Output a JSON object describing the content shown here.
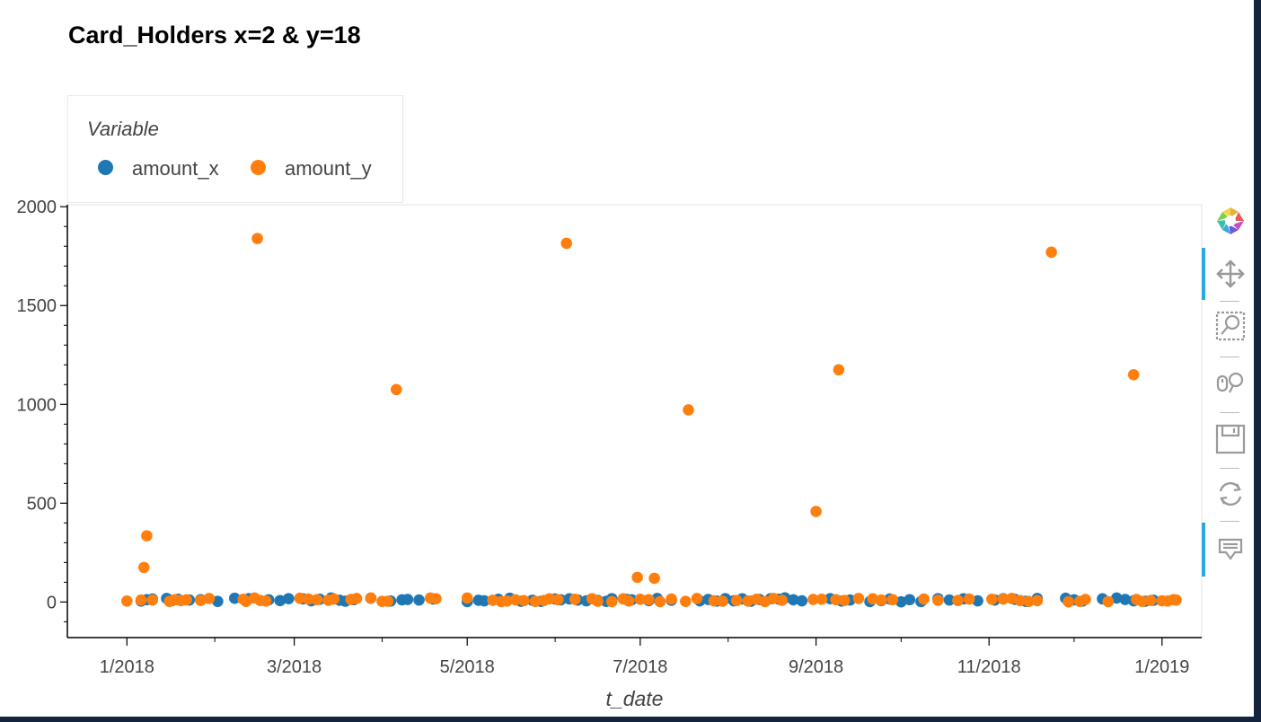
{
  "chart_data": {
    "type": "scatter",
    "title": "Card_Holders x=2 & y=18",
    "xlabel": "t_date",
    "ylabel": "",
    "legend": {
      "title": "Variable",
      "placement": "top-left, above plot"
    },
    "xlim": [
      "2017-12-11",
      "2019-01-15"
    ],
    "ylim": [
      -180,
      2010
    ],
    "yticks": [
      0,
      500,
      1000,
      1500,
      2000
    ],
    "xticks": [
      {
        "date": "2018-01-01",
        "label": "1/2018"
      },
      {
        "date": "2018-03-01",
        "label": "3/2018"
      },
      {
        "date": "2018-05-01",
        "label": "5/2018"
      },
      {
        "date": "2018-07-01",
        "label": "7/2018"
      },
      {
        "date": "2018-09-01",
        "label": "9/2018"
      },
      {
        "date": "2018-11-01",
        "label": "11/2018"
      },
      {
        "date": "2019-01-01",
        "label": "1/2019"
      }
    ],
    "grid": false,
    "series": [
      {
        "name": "amount_x",
        "color": "#1f77b4",
        "points": [
          {
            "x": "2018-01-06",
            "y": 5
          },
          {
            "x": "2018-01-08",
            "y": 12
          },
          {
            "x": "2018-01-10",
            "y": 15
          },
          {
            "x": "2018-01-15",
            "y": 18
          },
          {
            "x": "2018-01-17",
            "y": 8
          },
          {
            "x": "2018-01-19",
            "y": 14
          },
          {
            "x": "2018-01-23",
            "y": 10
          },
          {
            "x": "2018-01-27",
            "y": 12
          },
          {
            "x": "2018-02-02",
            "y": 3
          },
          {
            "x": "2018-02-08",
            "y": 19
          },
          {
            "x": "2018-02-13",
            "y": 17
          },
          {
            "x": "2018-02-20",
            "y": 11
          },
          {
            "x": "2018-02-24",
            "y": 7
          },
          {
            "x": "2018-02-27",
            "y": 17
          },
          {
            "x": "2018-03-04",
            "y": 16
          },
          {
            "x": "2018-03-07",
            "y": 6
          },
          {
            "x": "2018-03-10",
            "y": 14
          },
          {
            "x": "2018-03-14",
            "y": 20
          },
          {
            "x": "2018-03-17",
            "y": 9
          },
          {
            "x": "2018-03-19",
            "y": 4
          },
          {
            "x": "2018-03-22",
            "y": 12
          },
          {
            "x": "2018-03-28",
            "y": 19
          },
          {
            "x": "2018-04-04",
            "y": 5
          },
          {
            "x": "2018-04-08",
            "y": 11
          },
          {
            "x": "2018-04-10",
            "y": 13
          },
          {
            "x": "2018-04-14",
            "y": 10
          },
          {
            "x": "2018-04-19",
            "y": 15
          },
          {
            "x": "2018-05-01",
            "y": 2
          },
          {
            "x": "2018-05-05",
            "y": 9
          },
          {
            "x": "2018-05-07",
            "y": 6
          },
          {
            "x": "2018-05-12",
            "y": 14
          },
          {
            "x": "2018-05-16",
            "y": 19
          },
          {
            "x": "2018-05-20",
            "y": 4
          },
          {
            "x": "2018-05-24",
            "y": 9
          },
          {
            "x": "2018-05-27",
            "y": 3
          },
          {
            "x": "2018-06-01",
            "y": 15
          },
          {
            "x": "2018-06-03",
            "y": 11
          },
          {
            "x": "2018-06-06",
            "y": 16
          },
          {
            "x": "2018-06-09",
            "y": 10
          },
          {
            "x": "2018-06-12",
            "y": 6
          },
          {
            "x": "2018-06-16",
            "y": 8
          },
          {
            "x": "2018-06-19",
            "y": 3
          },
          {
            "x": "2018-06-21",
            "y": 17
          },
          {
            "x": "2018-06-26",
            "y": 14
          },
          {
            "x": "2018-06-28",
            "y": 11
          },
          {
            "x": "2018-07-04",
            "y": 7
          },
          {
            "x": "2018-07-07",
            "y": 18
          },
          {
            "x": "2018-07-12",
            "y": 9
          },
          {
            "x": "2018-07-22",
            "y": 6
          },
          {
            "x": "2018-07-25",
            "y": 13
          },
          {
            "x": "2018-07-28",
            "y": 5
          },
          {
            "x": "2018-07-31",
            "y": 17
          },
          {
            "x": "2018-08-03",
            "y": 6
          },
          {
            "x": "2018-08-06",
            "y": 16
          },
          {
            "x": "2018-08-09",
            "y": 4
          },
          {
            "x": "2018-08-12",
            "y": 13
          },
          {
            "x": "2018-08-16",
            "y": 17
          },
          {
            "x": "2018-08-19",
            "y": 14
          },
          {
            "x": "2018-08-21",
            "y": 21
          },
          {
            "x": "2018-08-24",
            "y": 11
          },
          {
            "x": "2018-08-27",
            "y": 6
          },
          {
            "x": "2018-09-06",
            "y": 17
          },
          {
            "x": "2018-09-10",
            "y": 5
          },
          {
            "x": "2018-09-13",
            "y": 10
          },
          {
            "x": "2018-09-20",
            "y": 2
          },
          {
            "x": "2018-09-24",
            "y": 7
          },
          {
            "x": "2018-09-27",
            "y": 15
          },
          {
            "x": "2018-10-01",
            "y": 1
          },
          {
            "x": "2018-10-04",
            "y": 12
          },
          {
            "x": "2018-10-08",
            "y": 2
          },
          {
            "x": "2018-10-14",
            "y": 17
          },
          {
            "x": "2018-10-18",
            "y": 10
          },
          {
            "x": "2018-10-23",
            "y": 16
          },
          {
            "x": "2018-10-28",
            "y": 6
          },
          {
            "x": "2018-11-03",
            "y": 10
          },
          {
            "x": "2018-11-06",
            "y": 17
          },
          {
            "x": "2018-11-10",
            "y": 14
          },
          {
            "x": "2018-11-14",
            "y": 3
          },
          {
            "x": "2018-11-18",
            "y": 18
          },
          {
            "x": "2018-11-28",
            "y": 19
          },
          {
            "x": "2018-12-01",
            "y": 11
          },
          {
            "x": "2018-12-04",
            "y": 5
          },
          {
            "x": "2018-12-11",
            "y": 16
          },
          {
            "x": "2018-12-16",
            "y": 20
          },
          {
            "x": "2018-12-19",
            "y": 13
          },
          {
            "x": "2018-12-22",
            "y": 6
          },
          {
            "x": "2018-12-26",
            "y": 4
          },
          {
            "x": "2018-12-29",
            "y": 9
          }
        ]
      },
      {
        "name": "amount_y",
        "color": "#ff7f0e",
        "points": [
          {
            "x": "2018-01-01",
            "y": 5
          },
          {
            "x": "2018-01-06",
            "y": 10
          },
          {
            "x": "2018-01-07",
            "y": 175
          },
          {
            "x": "2018-01-08",
            "y": 335
          },
          {
            "x": "2018-01-10",
            "y": 10
          },
          {
            "x": "2018-01-16",
            "y": 3
          },
          {
            "x": "2018-01-18",
            "y": 12
          },
          {
            "x": "2018-01-20",
            "y": 7
          },
          {
            "x": "2018-01-22",
            "y": 11
          },
          {
            "x": "2018-01-27",
            "y": 8
          },
          {
            "x": "2018-01-30",
            "y": 18
          },
          {
            "x": "2018-02-11",
            "y": 14
          },
          {
            "x": "2018-02-12",
            "y": 3
          },
          {
            "x": "2018-02-15",
            "y": 20
          },
          {
            "x": "2018-02-16",
            "y": 1839
          },
          {
            "x": "2018-02-17",
            "y": 8
          },
          {
            "x": "2018-02-19",
            "y": 5
          },
          {
            "x": "2018-03-03",
            "y": 19
          },
          {
            "x": "2018-03-06",
            "y": 15
          },
          {
            "x": "2018-03-09",
            "y": 12
          },
          {
            "x": "2018-03-13",
            "y": 9
          },
          {
            "x": "2018-03-15",
            "y": 15
          },
          {
            "x": "2018-03-21",
            "y": 13
          },
          {
            "x": "2018-03-23",
            "y": 18
          },
          {
            "x": "2018-03-28",
            "y": 20
          },
          {
            "x": "2018-04-01",
            "y": 3
          },
          {
            "x": "2018-04-03",
            "y": 4
          },
          {
            "x": "2018-04-06",
            "y": 1075
          },
          {
            "x": "2018-04-18",
            "y": 20
          },
          {
            "x": "2018-04-20",
            "y": 17
          },
          {
            "x": "2018-05-01",
            "y": 20
          },
          {
            "x": "2018-05-10",
            "y": 9
          },
          {
            "x": "2018-05-13",
            "y": 2
          },
          {
            "x": "2018-05-15",
            "y": 5
          },
          {
            "x": "2018-05-18",
            "y": 11
          },
          {
            "x": "2018-05-21",
            "y": 7
          },
          {
            "x": "2018-05-25",
            "y": 3
          },
          {
            "x": "2018-05-28",
            "y": 8
          },
          {
            "x": "2018-05-30",
            "y": 16
          },
          {
            "x": "2018-06-02",
            "y": 12
          },
          {
            "x": "2018-06-05",
            "y": 1815
          },
          {
            "x": "2018-06-08",
            "y": 14
          },
          {
            "x": "2018-06-14",
            "y": 17
          },
          {
            "x": "2018-06-16",
            "y": 4
          },
          {
            "x": "2018-06-21",
            "y": 2
          },
          {
            "x": "2018-06-25",
            "y": 16
          },
          {
            "x": "2018-06-27",
            "y": 5
          },
          {
            "x": "2018-06-30",
            "y": 125
          },
          {
            "x": "2018-07-01",
            "y": 14
          },
          {
            "x": "2018-07-04",
            "y": 12
          },
          {
            "x": "2018-07-06",
            "y": 120
          },
          {
            "x": "2018-07-08",
            "y": 2
          },
          {
            "x": "2018-07-12",
            "y": 15
          },
          {
            "x": "2018-07-17",
            "y": 3
          },
          {
            "x": "2018-07-18",
            "y": 972
          },
          {
            "x": "2018-07-21",
            "y": 18
          },
          {
            "x": "2018-07-27",
            "y": 6
          },
          {
            "x": "2018-07-30",
            "y": 4
          },
          {
            "x": "2018-08-04",
            "y": 8
          },
          {
            "x": "2018-08-08",
            "y": 5
          },
          {
            "x": "2018-08-11",
            "y": 14
          },
          {
            "x": "2018-08-14",
            "y": 2
          },
          {
            "x": "2018-08-17",
            "y": 18
          },
          {
            "x": "2018-08-20",
            "y": 9
          },
          {
            "x": "2018-08-31",
            "y": 13
          },
          {
            "x": "2018-09-01",
            "y": 458
          },
          {
            "x": "2018-09-03",
            "y": 14
          },
          {
            "x": "2018-09-08",
            "y": 12
          },
          {
            "x": "2018-09-09",
            "y": 1175
          },
          {
            "x": "2018-09-11",
            "y": 8
          },
          {
            "x": "2018-09-16",
            "y": 18
          },
          {
            "x": "2018-09-21",
            "y": 16
          },
          {
            "x": "2018-09-24",
            "y": 10
          },
          {
            "x": "2018-09-28",
            "y": 12
          },
          {
            "x": "2018-10-09",
            "y": 15
          },
          {
            "x": "2018-10-14",
            "y": 9
          },
          {
            "x": "2018-10-21",
            "y": 8
          },
          {
            "x": "2018-10-25",
            "y": 15
          },
          {
            "x": "2018-11-02",
            "y": 14
          },
          {
            "x": "2018-11-06",
            "y": 15
          },
          {
            "x": "2018-11-09",
            "y": 18
          },
          {
            "x": "2018-11-12",
            "y": 7
          },
          {
            "x": "2018-11-15",
            "y": 3
          },
          {
            "x": "2018-11-18",
            "y": 7
          },
          {
            "x": "2018-11-23",
            "y": 1770
          },
          {
            "x": "2018-11-29",
            "y": 1
          },
          {
            "x": "2018-12-03",
            "y": 3
          },
          {
            "x": "2018-12-05",
            "y": 13
          },
          {
            "x": "2018-12-13",
            "y": 2
          },
          {
            "x": "2018-12-22",
            "y": 1150
          },
          {
            "x": "2018-12-23",
            "y": 13
          },
          {
            "x": "2018-12-25",
            "y": 3
          },
          {
            "x": "2018-12-28",
            "y": 8
          },
          {
            "x": "2019-01-01",
            "y": 6
          },
          {
            "x": "2019-01-03",
            "y": 5
          },
          {
            "x": "2019-01-05",
            "y": 12
          },
          {
            "x": "2019-01-06",
            "y": 10
          }
        ]
      }
    ]
  },
  "toolbar": {
    "tools": [
      {
        "name": "bokeh-logo-icon",
        "active": false
      },
      {
        "name": "pan-icon",
        "active": true
      },
      {
        "name": "box-zoom-icon",
        "active": false
      },
      {
        "name": "wheel-zoom-icon",
        "active": false
      },
      {
        "name": "save-icon",
        "active": false
      },
      {
        "name": "reset-icon",
        "active": false
      },
      {
        "name": "hover-icon",
        "active": true
      }
    ]
  }
}
